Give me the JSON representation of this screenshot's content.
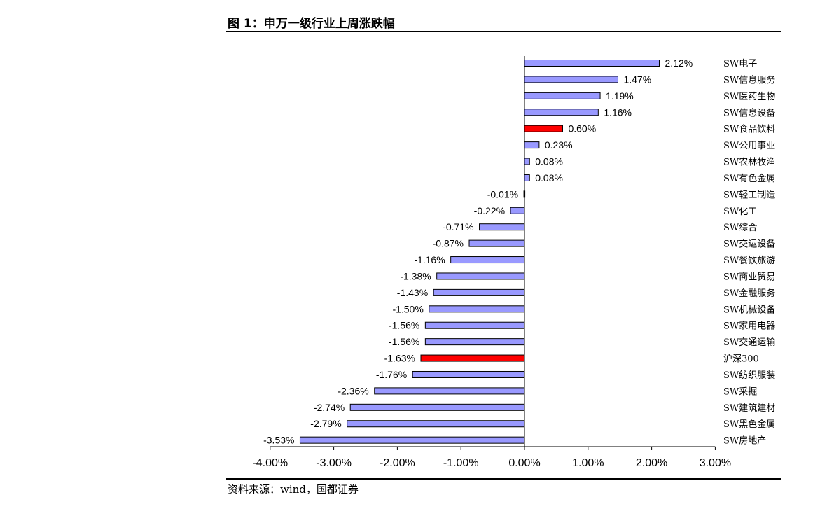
{
  "figure_title": "图 1：申万一级行业上周涨跌幅",
  "source_note": "资料来源：wind，国都证券",
  "colors": {
    "bar": "#9999ff",
    "highlight": "#ff0000",
    "outline": "#000000"
  },
  "chart_data": {
    "type": "bar",
    "orientation": "horizontal",
    "title": "",
    "xlabel": "",
    "ylabel": "",
    "xlim": [
      -4,
      3
    ],
    "x_ticks": [
      -4,
      -3,
      -2,
      -1,
      0,
      1,
      2,
      3
    ],
    "x_tick_labels": [
      "-4.00%",
      "-3.00%",
      "-2.00%",
      "-1.00%",
      "0.00%",
      "1.00%",
      "2.00%",
      "3.00%"
    ],
    "grid": false,
    "legend": "none",
    "categories": [
      "SW电子",
      "SW信息服务",
      "SW医药生物",
      "SW信息设备",
      "SW食品饮料",
      "SW公用事业",
      "SW农林牧渔",
      "SW有色金属",
      "SW轻工制造",
      "SW化工",
      "SW综合",
      "SW交运设备",
      "SW餐饮旅游",
      "SW商业贸易",
      "SW金融服务",
      "SW机械设备",
      "SW家用电器",
      "SW交通运输",
      "沪深300",
      "SW纺织服装",
      "SW采掘",
      "SW建筑建材",
      "SW黑色金属",
      "SW房地产"
    ],
    "values": [
      2.12,
      1.47,
      1.19,
      1.16,
      0.6,
      0.23,
      0.08,
      0.08,
      -0.01,
      -0.22,
      -0.71,
      -0.87,
      -1.16,
      -1.38,
      -1.43,
      -1.5,
      -1.56,
      -1.56,
      -1.63,
      -1.76,
      -2.36,
      -2.74,
      -2.79,
      -3.53
    ],
    "value_labels": [
      "2.12%",
      "1.47%",
      "1.19%",
      "1.16%",
      "0.60%",
      "0.23%",
      "0.08%",
      "0.08%",
      "-0.01%",
      "-0.22%",
      "-0.71%",
      "-0.87%",
      "-1.16%",
      "-1.38%",
      "-1.43%",
      "-1.50%",
      "-1.56%",
      "-1.56%",
      "-1.63%",
      "-1.76%",
      "-2.36%",
      "-2.74%",
      "-2.79%",
      "-3.53%"
    ],
    "highlighted": [
      "SW食品饮料",
      "沪深300"
    ]
  }
}
